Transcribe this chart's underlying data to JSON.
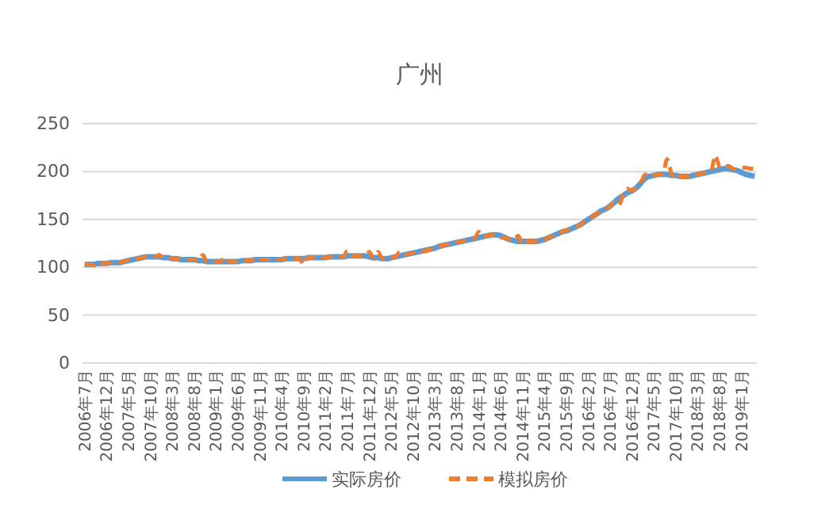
{
  "chart_data": {
    "type": "line",
    "title": "广州",
    "categories": [
      "2006年7月",
      null,
      null,
      null,
      null,
      "2006年12月",
      null,
      null,
      null,
      null,
      "2007年5月",
      null,
      null,
      null,
      null,
      "2007年10月",
      null,
      null,
      null,
      null,
      "2008年3月",
      null,
      null,
      null,
      null,
      "2008年8月",
      null,
      null,
      null,
      null,
      "2009年1月",
      null,
      null,
      null,
      null,
      "2009年6月",
      null,
      null,
      null,
      null,
      "2009年11月",
      null,
      null,
      null,
      null,
      "2010年4月",
      null,
      null,
      null,
      null,
      "2010年9月",
      null,
      null,
      null,
      null,
      "2011年2月",
      null,
      null,
      null,
      null,
      "2011年7月",
      null,
      null,
      null,
      null,
      "2011年12月",
      null,
      null,
      null,
      null,
      "2012年5月",
      null,
      null,
      null,
      null,
      "2012年10月",
      null,
      null,
      null,
      null,
      "2013年3月",
      null,
      null,
      null,
      null,
      "2013年8月",
      null,
      null,
      null,
      null,
      "2014年1月",
      null,
      null,
      null,
      null,
      "2014年6月",
      null,
      null,
      null,
      null,
      "2014年11月",
      null,
      null,
      null,
      null,
      "2015年4月",
      null,
      null,
      null,
      null,
      "2015年9月",
      null,
      null,
      null,
      null,
      "2016年2月",
      null,
      null,
      null,
      null,
      "2016年7月",
      null,
      null,
      null,
      null,
      "2016年12月",
      null,
      null,
      null,
      null,
      "2017年5月",
      null,
      null,
      null,
      null,
      "2017年10月",
      null,
      null,
      null,
      null,
      "2018年3月",
      null,
      null,
      null,
      null,
      "2018年8月",
      null,
      null,
      null,
      null,
      "2019年1月",
      null,
      null,
      null
    ],
    "series": [
      {
        "name": "实际房价",
        "color": "#5b9bd5",
        "line_style": "solid",
        "values": [
          103,
          103,
          103,
          104,
          104,
          104,
          105,
          105,
          105,
          106,
          107,
          108,
          109,
          110,
          111,
          111,
          111,
          111,
          110,
          110,
          109,
          109,
          108,
          108,
          108,
          108,
          107,
          107,
          106,
          106,
          106,
          106,
          106,
          106,
          106,
          106,
          107,
          107,
          107,
          108,
          108,
          108,
          108,
          108,
          108,
          108,
          109,
          109,
          109,
          109,
          109,
          110,
          110,
          110,
          110,
          110,
          111,
          111,
          111,
          111,
          112,
          112,
          112,
          112,
          112,
          111,
          110,
          110,
          109,
          109,
          110,
          111,
          112,
          113,
          114,
          115,
          116,
          117,
          118,
          119,
          120,
          122,
          123,
          124,
          125,
          126,
          127,
          128,
          129,
          130,
          131,
          132,
          133,
          134,
          134,
          133,
          131,
          129,
          128,
          127,
          127,
          127,
          127,
          127,
          128,
          129,
          131,
          133,
          135,
          137,
          138,
          140,
          142,
          144,
          147,
          150,
          153,
          156,
          159,
          161,
          164,
          168,
          172,
          175,
          178,
          180,
          183,
          188,
          193,
          195,
          196,
          197,
          197,
          197,
          196,
          196,
          195,
          195,
          195,
          196,
          197,
          198,
          199,
          200,
          201,
          202,
          203,
          203,
          202,
          201,
          199,
          197,
          196,
          195
        ]
      },
      {
        "name": "模拟房价",
        "color": "#ed7d31",
        "line_style": "dashed",
        "values": [
          104,
          103,
          102,
          104,
          104,
          104,
          105,
          105,
          105,
          106,
          108,
          108,
          109,
          110,
          111,
          111,
          111,
          113,
          110,
          110,
          109,
          109,
          108,
          108,
          108,
          108,
          107,
          113,
          105,
          106,
          106,
          106,
          111,
          106,
          106,
          106,
          107,
          107,
          107,
          111,
          108,
          108,
          108,
          108,
          108,
          108,
          109,
          109,
          109,
          109,
          103,
          110,
          110,
          110,
          110,
          110,
          111,
          111,
          111,
          111,
          117,
          112,
          112,
          112,
          112,
          116,
          109,
          116,
          109,
          109,
          110,
          111,
          116,
          113,
          114,
          115,
          116,
          117,
          117,
          119,
          120,
          122,
          123,
          124,
          125,
          126,
          127,
          128,
          129,
          130,
          137,
          132,
          133,
          134,
          134,
          131,
          131,
          129,
          128,
          133,
          124,
          127,
          127,
          127,
          128,
          129,
          131,
          133,
          135,
          137,
          139,
          140,
          142,
          144,
          147,
          150,
          153,
          156,
          159,
          161,
          164,
          168,
          165,
          176,
          182,
          180,
          183,
          188,
          197,
          195,
          196,
          197,
          197,
          213,
          198,
          192,
          195,
          195,
          195,
          196,
          197,
          198,
          199,
          200,
          217,
          205,
          204,
          206,
          203,
          202,
          204,
          204,
          203,
          203
        ]
      }
    ],
    "ylim": [
      0,
      250
    ],
    "yticks": [
      0,
      50,
      100,
      150,
      200,
      250
    ],
    "grid": "y",
    "legend": "bottom"
  }
}
